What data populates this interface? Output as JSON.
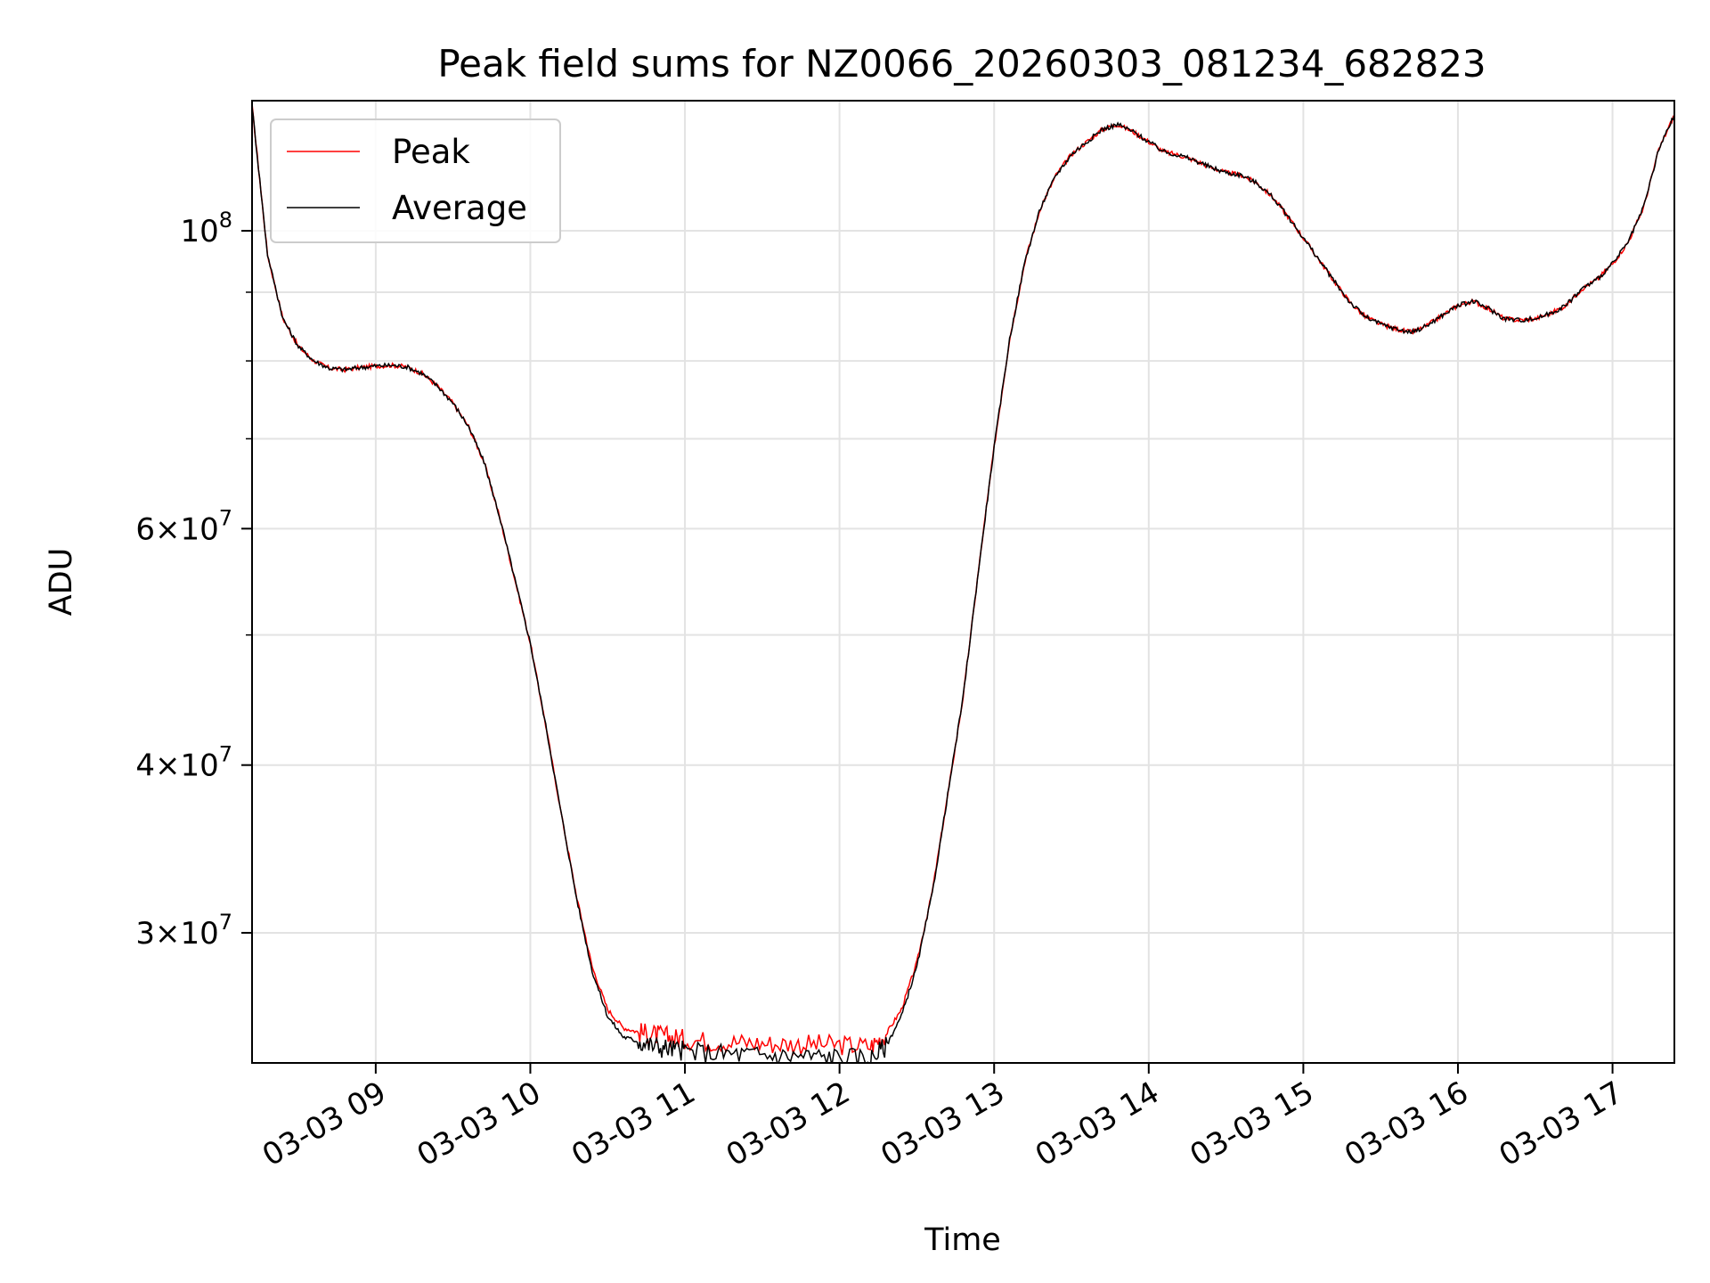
{
  "chart_data": {
    "type": "line",
    "title": "Peak field sums for NZ0066_20260303_081234_682823",
    "xlabel": "Time",
    "ylabel": "ADU",
    "x_range_hours": [
      8.2,
      17.4
    ],
    "ylim": [
      24000000,
      125000000
    ],
    "y_scale": "log",
    "grid": true,
    "legend_placement": "top-left",
    "x_ticks": [
      {
        "value": 9,
        "label": "03-03 09"
      },
      {
        "value": 10,
        "label": "03-03 10"
      },
      {
        "value": 11,
        "label": "03-03 11"
      },
      {
        "value": 12,
        "label": "03-03 12"
      },
      {
        "value": 13,
        "label": "03-03 13"
      },
      {
        "value": 14,
        "label": "03-03 14"
      },
      {
        "value": 15,
        "label": "03-03 15"
      },
      {
        "value": 16,
        "label": "03-03 16"
      },
      {
        "value": 17,
        "label": "03-03 17"
      }
    ],
    "y_ticks_major": [
      {
        "value": 100000000,
        "mantissa": "",
        "exponent": "8"
      },
      {
        "value": 60000000,
        "mantissa": "6",
        "exponent": "7"
      },
      {
        "value": 40000000,
        "mantissa": "4",
        "exponent": "7"
      },
      {
        "value": 30000000,
        "mantissa": "3",
        "exponent": "7"
      }
    ],
    "y_ticks_minor": [
      90000000,
      80000000,
      70000000,
      50000000
    ],
    "series": [
      {
        "name": "Peak",
        "color": "#ff0000",
        "x": [
          8.2,
          8.3,
          8.4,
          8.5,
          8.6,
          8.7,
          8.8,
          8.9,
          9.0,
          9.1,
          9.2,
          9.3,
          9.4,
          9.5,
          9.6,
          9.7,
          9.8,
          9.9,
          10.0,
          10.1,
          10.2,
          10.3,
          10.4,
          10.5,
          10.6,
          10.7,
          10.8,
          10.9,
          11.0,
          11.2,
          11.4,
          11.6,
          11.8,
          12.0,
          12.2,
          12.3,
          12.4,
          12.5,
          12.6,
          12.7,
          12.8,
          12.9,
          13.0,
          13.1,
          13.2,
          13.3,
          13.4,
          13.5,
          13.6,
          13.7,
          13.8,
          13.9,
          14.0,
          14.1,
          14.2,
          14.3,
          14.4,
          14.5,
          14.6,
          14.7,
          14.8,
          14.9,
          15.0,
          15.1,
          15.2,
          15.3,
          15.4,
          15.5,
          15.6,
          15.7,
          15.8,
          15.9,
          16.0,
          16.1,
          16.2,
          16.3,
          16.4,
          16.5,
          16.6,
          16.7,
          16.8,
          16.9,
          17.0,
          17.1,
          17.2,
          17.3,
          17.4
        ],
        "values": [
          124000000,
          96000000,
          86000000,
          82000000,
          80000000,
          79000000,
          78800000,
          79100000,
          79300000,
          79400000,
          79200000,
          78300000,
          76600000,
          74400000,
          71500000,
          67300000,
          61300000,
          55000000,
          49300000,
          42800000,
          36800000,
          31900000,
          28300000,
          26300000,
          25500000,
          25300000,
          25200000,
          25100000,
          25000000,
          24900000,
          24850000,
          24800000,
          24780000,
          24750000,
          24700000,
          25200000,
          26300000,
          28500000,
          32200000,
          38000000,
          45000000,
          56000000,
          69000000,
          83000000,
          95000000,
          104000000,
          110000000,
          114000000,
          116500000,
          119000000,
          120000000,
          118500000,
          116500000,
          114500000,
          113800000,
          112800000,
          111500000,
          110500000,
          110000000,
          108500000,
          106000000,
          102500000,
          98800000,
          95200000,
          91700000,
          88500000,
          86300000,
          85200000,
          84500000,
          84000000,
          85000000,
          86500000,
          88000000,
          88600000,
          87500000,
          86000000,
          85800000,
          86000000,
          86800000,
          88000000,
          90500000,
          92000000,
          94500000,
          98000000,
          104000000,
          115000000,
          122000000
        ],
        "noise_region_hours": [
          10.7,
          12.3
        ]
      },
      {
        "name": "Average",
        "color": "#000000",
        "x": [
          8.2,
          8.3,
          8.4,
          8.5,
          8.6,
          8.7,
          8.8,
          8.9,
          9.0,
          9.1,
          9.2,
          9.3,
          9.4,
          9.5,
          9.6,
          9.7,
          9.8,
          9.9,
          10.0,
          10.1,
          10.2,
          10.3,
          10.4,
          10.5,
          10.6,
          10.7,
          10.8,
          10.9,
          11.0,
          11.2,
          11.4,
          11.6,
          11.8,
          12.0,
          12.2,
          12.3,
          12.4,
          12.5,
          12.6,
          12.7,
          12.8,
          12.9,
          13.0,
          13.1,
          13.2,
          13.3,
          13.4,
          13.5,
          13.6,
          13.7,
          13.8,
          13.9,
          14.0,
          14.1,
          14.2,
          14.3,
          14.4,
          14.5,
          14.6,
          14.7,
          14.8,
          14.9,
          15.0,
          15.1,
          15.2,
          15.3,
          15.4,
          15.5,
          15.6,
          15.7,
          15.8,
          15.9,
          16.0,
          16.1,
          16.2,
          16.3,
          16.4,
          16.5,
          16.6,
          16.7,
          16.8,
          16.9,
          17.0,
          17.1,
          17.2,
          17.3,
          17.4
        ],
        "values": [
          124000000,
          96000000,
          86000000,
          82000000,
          80000000,
          79000000,
          78800000,
          79100000,
          79300000,
          79400000,
          79200000,
          78300000,
          76600000,
          74400000,
          71500000,
          67300000,
          61300000,
          55000000,
          49300000,
          42800000,
          36800000,
          31800000,
          28100000,
          26000000,
          25100000,
          24900000,
          24700000,
          24600000,
          24500000,
          24400000,
          24350000,
          24300000,
          24280000,
          24250000,
          24200000,
          24700000,
          26000000,
          28300000,
          32100000,
          38000000,
          45000000,
          56000000,
          69000000,
          83000000,
          95000000,
          104000000,
          110000000,
          114000000,
          116500000,
          119000000,
          120000000,
          118500000,
          116500000,
          114500000,
          113800000,
          112800000,
          111500000,
          110500000,
          110000000,
          108500000,
          106000000,
          102500000,
          98800000,
          95200000,
          91700000,
          88500000,
          86300000,
          85200000,
          84500000,
          84000000,
          85000000,
          86500000,
          88000000,
          88600000,
          87500000,
          86000000,
          85800000,
          86000000,
          86800000,
          88000000,
          90500000,
          92000000,
          94500000,
          98000000,
          104000000,
          115000000,
          122000000
        ],
        "noise_region_hours": [
          10.7,
          12.3
        ]
      }
    ]
  }
}
